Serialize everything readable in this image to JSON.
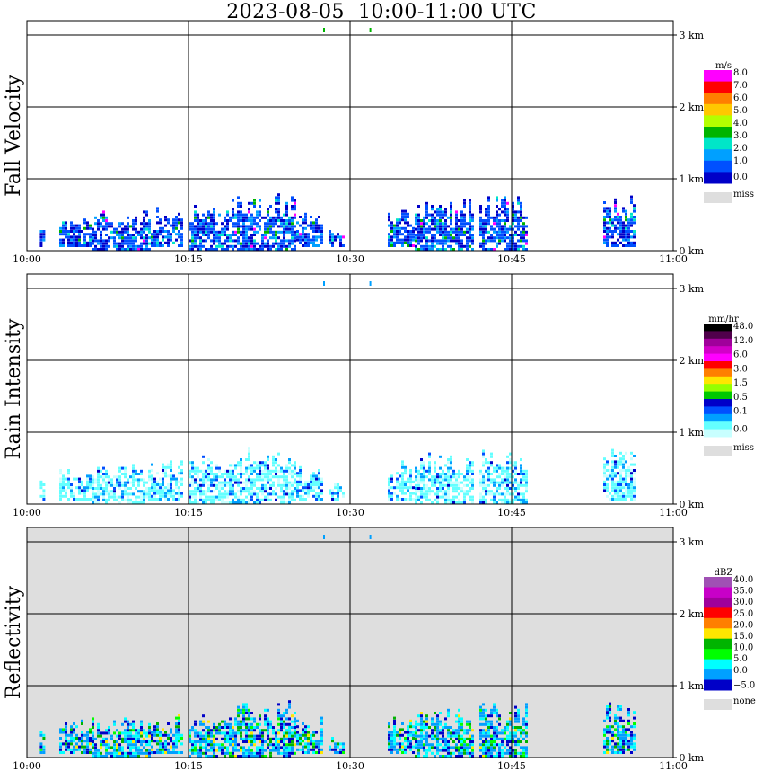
{
  "title": "2023-08-05  10:00-11:00 UTC",
  "colors": {
    "missing": "#dedede",
    "frame": "#000000"
  },
  "chart_data": [
    {
      "type": "heatmap",
      "ylabel": "Fall Velocity",
      "x_ticks": [
        "10:00",
        "10:15",
        "10:30",
        "10:45",
        "11:00"
      ],
      "y_ticks": [
        "0 km",
        "1 km",
        "2 km",
        "3 km"
      ],
      "xlim": [
        "10:00",
        "11:00"
      ],
      "ylim": [
        0,
        3.2
      ],
      "grid": true,
      "background": "#ffffff",
      "legend": {
        "unit": "m/s",
        "labels": [
          "8.0",
          "7.0",
          "6.0",
          "5.0",
          "4.0",
          "3.0",
          "2.0",
          "1.0",
          "0.0"
        ],
        "colors": [
          "#ff00ff",
          "#ff0000",
          "#ff7f00",
          "#ffc800",
          "#b4ff00",
          "#00b400",
          "#00e6c8",
          "#00a0ff",
          "#0050ff",
          "#0000c8"
        ],
        "missing_label": "miss"
      }
    },
    {
      "type": "heatmap",
      "ylabel": "Rain Intensity",
      "x_ticks": [
        "10:00",
        "10:15",
        "10:30",
        "10:45",
        "11:00"
      ],
      "y_ticks": [
        "0 km",
        "1 km",
        "2 km",
        "3 km"
      ],
      "xlim": [
        "10:00",
        "11:00"
      ],
      "ylim": [
        0,
        3.2
      ],
      "grid": true,
      "background": "#ffffff",
      "legend": {
        "unit": "mm/hr",
        "labels": [
          "48.0",
          "12.0",
          "6.0",
          "3.0",
          "1.5",
          "0.5",
          "0.1",
          "0.0"
        ],
        "colors": [
          "#000000",
          "#50004b",
          "#a0009b",
          "#d200c8",
          "#ff00ff",
          "#ff0000",
          "#ff7f00",
          "#ffe600",
          "#96ff00",
          "#00c800",
          "#0000c8",
          "#0050ff",
          "#00a0ff",
          "#64ffff",
          "#c8ffff"
        ],
        "missing_label": "miss"
      }
    },
    {
      "type": "heatmap",
      "ylabel": "Reflectivity",
      "x_ticks": [
        "10:00",
        "10:15",
        "10:30",
        "10:45",
        "11:00"
      ],
      "y_ticks": [
        "0 km",
        "1 km",
        "2 km",
        "3 km"
      ],
      "xlim": [
        "10:00",
        "11:00"
      ],
      "ylim": [
        0,
        3.2
      ],
      "grid": true,
      "background": "#dedede",
      "legend": {
        "unit": "dBZ",
        "labels": [
          "40.0",
          "35.0",
          "30.0",
          "25.0",
          "20.0",
          "15.0",
          "10.0",
          "5.0",
          "0.0",
          "−5.0"
        ],
        "colors": [
          "#a050b4",
          "#c800c8",
          "#a0009b",
          "#ff0000",
          "#ff7f00",
          "#ffe600",
          "#00b400",
          "#00ff00",
          "#00ffff",
          "#00a0ff",
          "#0000c8"
        ],
        "missing_label": "none"
      }
    }
  ]
}
